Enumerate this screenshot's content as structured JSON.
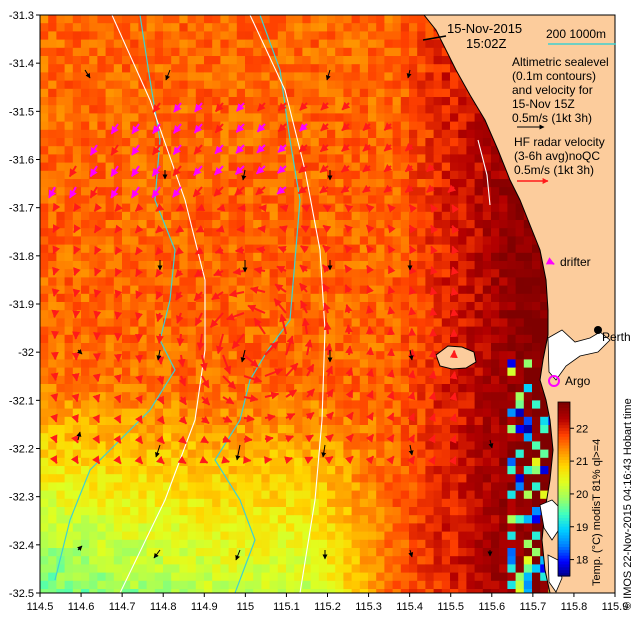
{
  "header": {
    "date": "15-Nov-2015",
    "time": "15:02Z",
    "isobath_label": "200  1000m"
  },
  "legend": {
    "altimetry_lines": [
      "Altimetric sealevel",
      "(0.1m contours)",
      "and velocity for",
      "15-Nov 15Z",
      "0.5m/s (1kt 3h)"
    ],
    "hf_radar_lines": [
      "HF radar velocity",
      "(3-6h avg)noQC",
      "0.5m/s (1kt 3h)"
    ],
    "drifter_label": "drifter",
    "argo_label": "Argo",
    "city_label": "Perth"
  },
  "credit": {
    "text": "© IMOS 22-Nov-2015 04:16:43 Hobart time"
  },
  "colorbar": {
    "label": "Temp. (°C) modisT 81% ql>=4",
    "ticks": [
      "22",
      "21",
      "20",
      "19",
      "18"
    ],
    "min": 17.5,
    "max": 22.8,
    "colors": [
      "#00007f",
      "#0000ff",
      "#0080ff",
      "#00d0ff",
      "#40ffbf",
      "#9fff60",
      "#e0ff20",
      "#ffd800",
      "#ff9000",
      "#ff4000",
      "#b40000",
      "#7f0000"
    ]
  },
  "chart_data": {
    "type": "map",
    "x_ticks": [
      "114.5",
      "114.6",
      "114.7",
      "114.8",
      "114.9",
      "115",
      "115.1",
      "115.2",
      "115.3",
      "115.4",
      "115.5",
      "115.6",
      "115.7",
      "115.8",
      "115.9"
    ],
    "y_ticks": [
      "-31.3",
      "-31.4",
      "-31.5",
      "-31.6",
      "-31.7",
      "-31.8",
      "-31.9",
      "-32",
      "-32.1",
      "-32.2",
      "-32.3",
      "-32.4",
      "-32.5"
    ],
    "xlim": [
      114.5,
      115.9
    ],
    "ylim": [
      -32.5,
      -31.3
    ],
    "points": [
      {
        "name": "Perth",
        "lon": 115.86,
        "lat": -31.95
      },
      {
        "name": "Argo",
        "lon": 115.76,
        "lat": -32.07
      }
    ]
  }
}
